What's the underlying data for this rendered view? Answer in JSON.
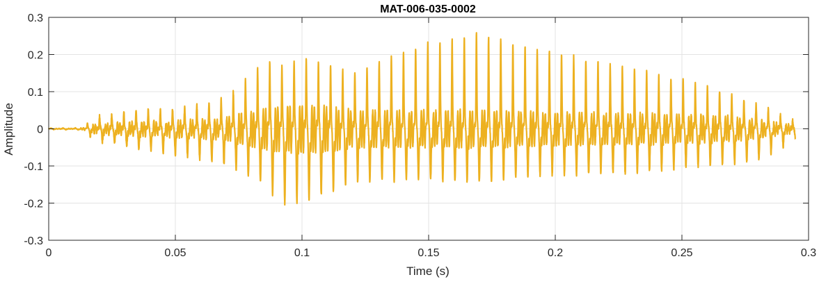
{
  "chart_data": {
    "type": "line",
    "title": "MAT-006-035-0002",
    "xlabel": "Time (s)",
    "ylabel": "Amplitude",
    "xlim": [
      0,
      0.3
    ],
    "ylim": [
      -0.3,
      0.3
    ],
    "grid": true,
    "x_ticks": [
      0,
      0.05,
      0.1,
      0.15,
      0.2,
      0.25,
      0.3
    ],
    "x_tick_labels": [
      "0",
      "0.05",
      "0.1",
      "0.15",
      "0.2",
      "0.25",
      "0.3"
    ],
    "y_ticks": [
      -0.3,
      -0.2,
      -0.1,
      0,
      0.1,
      0.2,
      0.3
    ],
    "y_tick_labels": [
      "-0.3",
      "-0.2",
      "-0.1",
      "0",
      "0.1",
      "0.2",
      "0.3"
    ],
    "series": [
      {
        "color": "#EDB120",
        "x_end": 0.2948,
        "envelope": {
          "t": [
            0,
            0.012,
            0.02,
            0.03,
            0.05,
            0.07,
            0.085,
            0.092,
            0.1,
            0.12,
            0.15,
            0.17,
            0.2,
            0.23,
            0.26,
            0.28,
            0.2948
          ],
          "pos": [
            0.002,
            0.003,
            0.035,
            0.05,
            0.06,
            0.085,
            0.19,
            0.18,
            0.2,
            0.16,
            0.24,
            0.265,
            0.21,
            0.17,
            0.12,
            0.07,
            0.02
          ],
          "neg": [
            -0.002,
            -0.003,
            -0.035,
            -0.05,
            -0.07,
            -0.1,
            -0.16,
            -0.21,
            -0.21,
            -0.15,
            -0.145,
            -0.15,
            -0.13,
            -0.125,
            -0.105,
            -0.09,
            -0.03
          ]
        },
        "period_s": 0.0048
      }
    ]
  }
}
